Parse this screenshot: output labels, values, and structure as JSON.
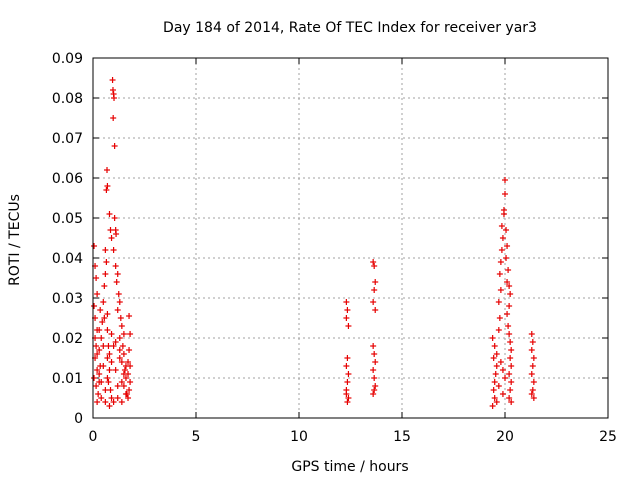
{
  "chart_data": {
    "type": "scatter",
    "title": "Day 184 of 2014, Rate Of TEC Index for receiver yar3",
    "xlabel": "GPS time / hours",
    "ylabel": "ROTI / TECUs",
    "xlim": [
      0,
      25
    ],
    "ylim": [
      0,
      0.09
    ],
    "xticks": [
      0,
      5,
      10,
      15,
      20,
      25
    ],
    "yticks": [
      0,
      0.01,
      0.02,
      0.03,
      0.04,
      0.05,
      0.06,
      0.07,
      0.08,
      0.09
    ],
    "xtick_labels": [
      "0",
      "5",
      "10",
      "15",
      "20",
      "25"
    ],
    "ytick_labels": [
      "0",
      "0.01",
      "0.02",
      "0.03",
      "0.04",
      "0.05",
      "0.06",
      "0.07",
      "0.08",
      "0.09"
    ],
    "grid": true,
    "marker": "+",
    "color": "#e60000",
    "series": [
      {
        "name": "ROTI",
        "points": [
          [
            0.05,
            0.043
          ],
          [
            0.1,
            0.038
          ],
          [
            0.15,
            0.035
          ],
          [
            0.2,
            0.031
          ],
          [
            0.05,
            0.028
          ],
          [
            0.1,
            0.025
          ],
          [
            0.2,
            0.022
          ],
          [
            0.15,
            0.018
          ],
          [
            0.1,
            0.015
          ],
          [
            0.2,
            0.012
          ],
          [
            0.05,
            0.01
          ],
          [
            0.15,
            0.008
          ],
          [
            0.25,
            0.006
          ],
          [
            0.3,
            0.009
          ],
          [
            0.35,
            0.013
          ],
          [
            0.3,
            0.017
          ],
          [
            0.4,
            0.02
          ],
          [
            0.45,
            0.024
          ],
          [
            0.35,
            0.027
          ],
          [
            0.5,
            0.029
          ],
          [
            0.55,
            0.033
          ],
          [
            0.6,
            0.036
          ],
          [
            0.65,
            0.039
          ],
          [
            0.6,
            0.042
          ],
          [
            0.55,
            0.025
          ],
          [
            0.7,
            0.022
          ],
          [
            0.75,
            0.018
          ],
          [
            0.7,
            0.015
          ],
          [
            0.8,
            0.012
          ],
          [
            0.75,
            0.009
          ],
          [
            0.85,
            0.007
          ],
          [
            0.9,
            0.005
          ],
          [
            0.65,
            0.057
          ],
          [
            0.7,
            0.058
          ],
          [
            0.68,
            0.062
          ],
          [
            0.8,
            0.051
          ],
          [
            0.85,
            0.047
          ],
          [
            0.9,
            0.045
          ],
          [
            0.95,
            0.0845
          ],
          [
            0.97,
            0.082
          ],
          [
            1.0,
            0.081
          ],
          [
            1.02,
            0.08
          ],
          [
            0.98,
            0.075
          ],
          [
            1.05,
            0.068
          ],
          [
            1.1,
            0.047
          ],
          [
            1.05,
            0.05
          ],
          [
            1.12,
            0.046
          ],
          [
            1.0,
            0.042
          ],
          [
            1.1,
            0.038
          ],
          [
            1.2,
            0.036
          ],
          [
            1.15,
            0.034
          ],
          [
            1.25,
            0.031
          ],
          [
            1.3,
            0.029
          ],
          [
            1.2,
            0.027
          ],
          [
            1.35,
            0.025
          ],
          [
            1.4,
            0.023
          ],
          [
            1.3,
            0.02
          ],
          [
            1.45,
            0.018
          ],
          [
            1.5,
            0.016
          ],
          [
            1.4,
            0.014
          ],
          [
            1.55,
            0.012
          ],
          [
            1.6,
            0.01
          ],
          [
            1.5,
            0.008
          ],
          [
            1.65,
            0.006
          ],
          [
            1.7,
            0.005
          ],
          [
            1.75,
            0.0255
          ],
          [
            1.8,
            0.021
          ],
          [
            1.75,
            0.017
          ],
          [
            1.8,
            0.013
          ],
          [
            1.7,
            0.011
          ],
          [
            1.8,
            0.009
          ],
          [
            1.75,
            0.007
          ],
          [
            0.2,
            0.004
          ],
          [
            0.4,
            0.005
          ],
          [
            0.6,
            0.004
          ],
          [
            0.8,
            0.003
          ],
          [
            1.0,
            0.004
          ],
          [
            1.2,
            0.005
          ],
          [
            1.4,
            0.004
          ],
          [
            1.6,
            0.006
          ],
          [
            0.3,
            0.011
          ],
          [
            0.5,
            0.013
          ],
          [
            0.7,
            0.01
          ],
          [
            0.9,
            0.014
          ],
          [
            1.1,
            0.012
          ],
          [
            1.3,
            0.015
          ],
          [
            1.5,
            0.011
          ],
          [
            1.7,
            0.014
          ],
          [
            0.1,
            0.02
          ],
          [
            0.3,
            0.022
          ],
          [
            0.5,
            0.018
          ],
          [
            0.7,
            0.026
          ],
          [
            0.9,
            0.021
          ],
          [
            1.1,
            0.019
          ],
          [
            1.3,
            0.017
          ],
          [
            1.5,
            0.021
          ],
          [
            0.2,
            0.016
          ],
          [
            0.4,
            0.009
          ],
          [
            0.6,
            0.007
          ],
          [
            0.8,
            0.016
          ],
          [
            1.0,
            0.018
          ],
          [
            1.2,
            0.008
          ],
          [
            1.4,
            0.009
          ],
          [
            1.6,
            0.013
          ],
          [
            12.3,
            0.029
          ],
          [
            12.35,
            0.027
          ],
          [
            12.3,
            0.025
          ],
          [
            12.4,
            0.023
          ],
          [
            12.35,
            0.015
          ],
          [
            12.3,
            0.013
          ],
          [
            12.4,
            0.011
          ],
          [
            12.35,
            0.009
          ],
          [
            12.3,
            0.007
          ],
          [
            12.4,
            0.005
          ],
          [
            12.35,
            0.004
          ],
          [
            12.3,
            0.006
          ],
          [
            13.6,
            0.039
          ],
          [
            13.65,
            0.038
          ],
          [
            13.7,
            0.034
          ],
          [
            13.65,
            0.032
          ],
          [
            13.6,
            0.029
          ],
          [
            13.7,
            0.027
          ],
          [
            13.6,
            0.018
          ],
          [
            13.65,
            0.016
          ],
          [
            13.7,
            0.014
          ],
          [
            13.6,
            0.012
          ],
          [
            13.65,
            0.01
          ],
          [
            13.7,
            0.008
          ],
          [
            13.6,
            0.006
          ],
          [
            13.65,
            0.007
          ],
          [
            19.4,
            0.02
          ],
          [
            19.5,
            0.018
          ],
          [
            19.45,
            0.015
          ],
          [
            19.6,
            0.013
          ],
          [
            19.55,
            0.011
          ],
          [
            19.5,
            0.009
          ],
          [
            19.45,
            0.007
          ],
          [
            19.5,
            0.005
          ],
          [
            19.4,
            0.003
          ],
          [
            19.6,
            0.004
          ],
          [
            19.7,
            0.022
          ],
          [
            19.75,
            0.025
          ],
          [
            19.7,
            0.029
          ],
          [
            19.8,
            0.032
          ],
          [
            19.75,
            0.036
          ],
          [
            19.8,
            0.039
          ],
          [
            19.85,
            0.042
          ],
          [
            19.9,
            0.045
          ],
          [
            19.85,
            0.048
          ],
          [
            19.95,
            0.052
          ],
          [
            20.0,
            0.0595
          ],
          [
            20.0,
            0.056
          ],
          [
            19.95,
            0.051
          ],
          [
            20.05,
            0.047
          ],
          [
            20.1,
            0.043
          ],
          [
            20.05,
            0.04
          ],
          [
            20.15,
            0.037
          ],
          [
            20.1,
            0.034
          ],
          [
            20.2,
            0.033
          ],
          [
            20.25,
            0.031
          ],
          [
            20.2,
            0.028
          ],
          [
            20.1,
            0.026
          ],
          [
            20.15,
            0.023
          ],
          [
            20.2,
            0.021
          ],
          [
            20.25,
            0.019
          ],
          [
            20.3,
            0.017
          ],
          [
            20.25,
            0.015
          ],
          [
            20.3,
            0.013
          ],
          [
            20.2,
            0.011
          ],
          [
            20.3,
            0.009
          ],
          [
            20.25,
            0.007
          ],
          [
            20.2,
            0.005
          ],
          [
            20.3,
            0.004
          ],
          [
            19.6,
            0.016
          ],
          [
            19.8,
            0.014
          ],
          [
            19.9,
            0.012
          ],
          [
            20.0,
            0.01
          ],
          [
            19.7,
            0.008
          ],
          [
            19.9,
            0.006
          ],
          [
            21.3,
            0.021
          ],
          [
            21.35,
            0.019
          ],
          [
            21.3,
            0.017
          ],
          [
            21.4,
            0.015
          ],
          [
            21.35,
            0.013
          ],
          [
            21.3,
            0.011
          ],
          [
            21.4,
            0.009
          ],
          [
            21.35,
            0.007
          ],
          [
            21.3,
            0.006
          ],
          [
            21.4,
            0.005
          ]
        ]
      }
    ]
  }
}
